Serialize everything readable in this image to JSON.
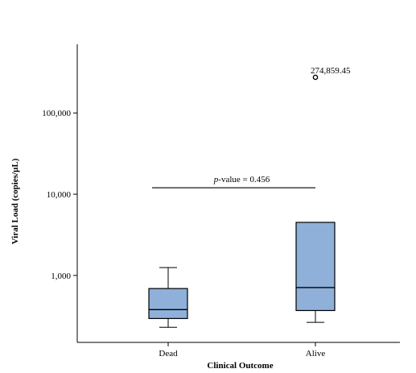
{
  "chart_data": {
    "type": "box",
    "title": "",
    "xlabel": "Clinical Outcome",
    "ylabel": "Viral Load (copies/µL)",
    "y_scale": "log",
    "ylim": [
      150,
      700000
    ],
    "y_ticks": [
      {
        "value": 1000,
        "label": "1,000"
      },
      {
        "value": 10000,
        "label": "10,000"
      },
      {
        "value": 100000,
        "label": "100,000"
      }
    ],
    "categories": [
      "Dead",
      "Alive"
    ],
    "boxes": [
      {
        "category": "Dead",
        "whisker_low": 230,
        "q1": 295,
        "median": 380,
        "q3": 690,
        "whisker_high": 1250,
        "outliers": []
      },
      {
        "category": "Alive",
        "whisker_low": 265,
        "q1": 370,
        "median": 710,
        "q3": 4500,
        "whisker_high": 4500,
        "outliers": [
          {
            "value": 274859.45,
            "label": "274,859.45"
          }
        ]
      }
    ],
    "box_color": "#8eb0d9",
    "significance": {
      "prefix": "p",
      "text": "-value = 0.456",
      "y": 12000,
      "from": "Dead",
      "to": "Alive"
    },
    "grid": false,
    "legend": "none"
  }
}
